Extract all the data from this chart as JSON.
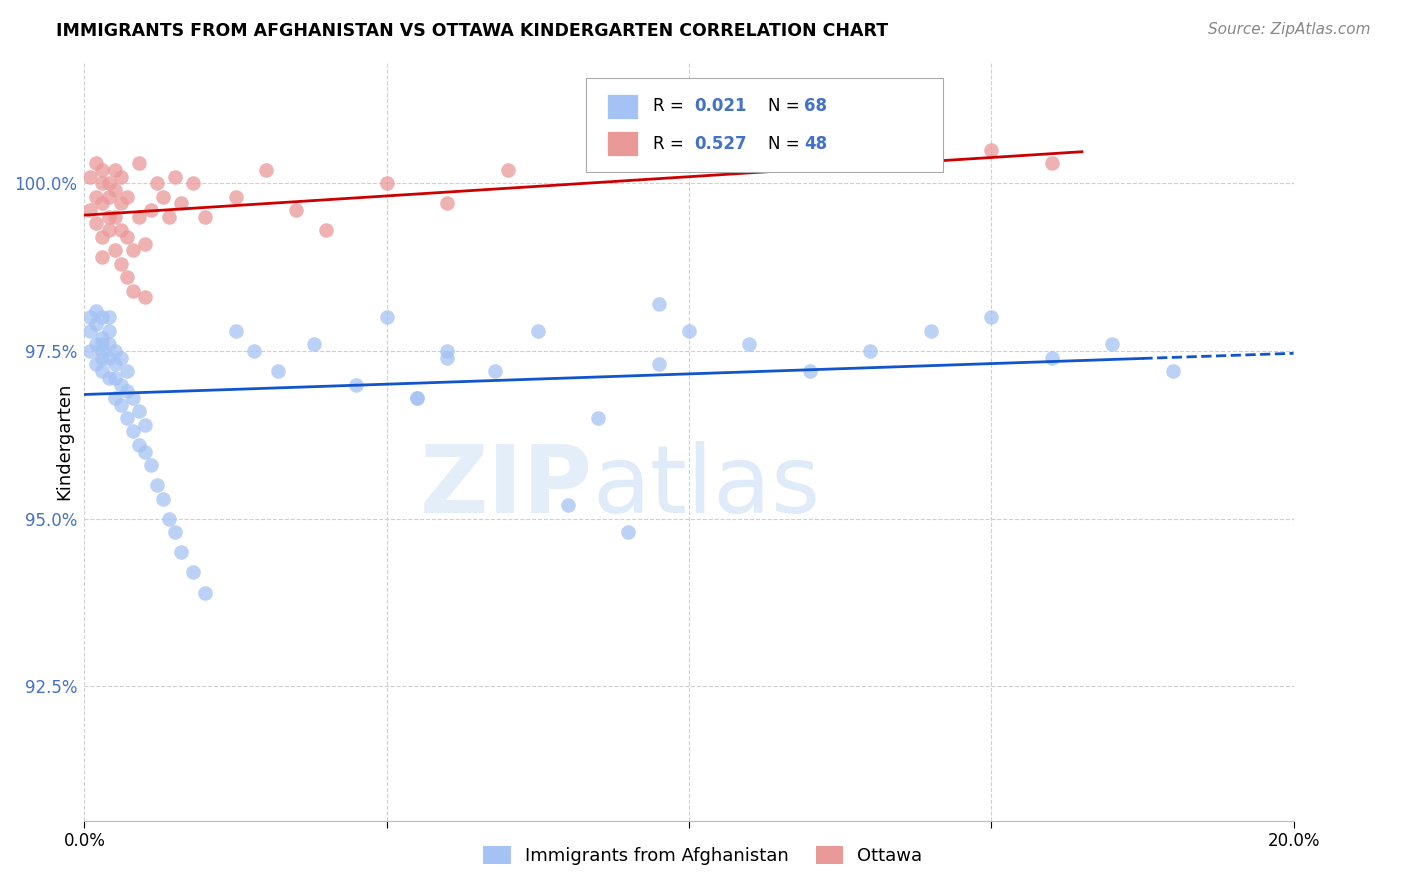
{
  "title": "IMMIGRANTS FROM AFGHANISTAN VS OTTAWA KINDERGARTEN CORRELATION CHART",
  "source": "Source: ZipAtlas.com",
  "ylabel": "Kindergarten",
  "yticks": [
    92.5,
    95.0,
    97.5,
    100.0
  ],
  "ytick_labels": [
    "92.5%",
    "95.0%",
    "97.5%",
    "100.0%"
  ],
  "xlim": [
    0.0,
    0.2
  ],
  "ylim": [
    90.5,
    101.8
  ],
  "blue_color": "#a4c2f4",
  "pink_color": "#ea9999",
  "blue_line_color": "#1155cc",
  "pink_line_color": "#cc0000",
  "blue_scatter_x": [
    0.001,
    0.001,
    0.001,
    0.002,
    0.002,
    0.002,
    0.002,
    0.003,
    0.003,
    0.003,
    0.003,
    0.003,
    0.003,
    0.004,
    0.004,
    0.004,
    0.004,
    0.004,
    0.005,
    0.005,
    0.005,
    0.005,
    0.006,
    0.006,
    0.006,
    0.007,
    0.007,
    0.007,
    0.008,
    0.008,
    0.009,
    0.009,
    0.01,
    0.01,
    0.011,
    0.012,
    0.013,
    0.014,
    0.015,
    0.016,
    0.018,
    0.02,
    0.025,
    0.028,
    0.032,
    0.038,
    0.045,
    0.05,
    0.055,
    0.06,
    0.068,
    0.075,
    0.085,
    0.095,
    0.11,
    0.12,
    0.13,
    0.14,
    0.15,
    0.16,
    0.17,
    0.18,
    0.095,
    0.1,
    0.055,
    0.06,
    0.08,
    0.09
  ],
  "blue_scatter_y": [
    97.5,
    97.8,
    98.0,
    97.3,
    97.6,
    97.9,
    98.1,
    97.2,
    97.5,
    97.7,
    97.4,
    97.6,
    98.0,
    97.1,
    97.4,
    97.6,
    97.8,
    98.0,
    96.8,
    97.1,
    97.3,
    97.5,
    96.7,
    97.0,
    97.4,
    96.5,
    96.9,
    97.2,
    96.3,
    96.8,
    96.1,
    96.6,
    96.0,
    96.4,
    95.8,
    95.5,
    95.3,
    95.0,
    94.8,
    94.5,
    94.2,
    93.9,
    97.8,
    97.5,
    97.2,
    97.6,
    97.0,
    98.0,
    96.8,
    97.5,
    97.2,
    97.8,
    96.5,
    97.3,
    97.6,
    97.2,
    97.5,
    97.8,
    98.0,
    97.4,
    97.6,
    97.2,
    98.2,
    97.8,
    96.8,
    97.4,
    95.2,
    94.8
  ],
  "pink_scatter_x": [
    0.001,
    0.001,
    0.002,
    0.002,
    0.002,
    0.003,
    0.003,
    0.003,
    0.003,
    0.003,
    0.004,
    0.004,
    0.004,
    0.004,
    0.005,
    0.005,
    0.005,
    0.005,
    0.006,
    0.006,
    0.006,
    0.006,
    0.007,
    0.007,
    0.007,
    0.008,
    0.008,
    0.009,
    0.009,
    0.01,
    0.01,
    0.011,
    0.012,
    0.013,
    0.014,
    0.015,
    0.016,
    0.018,
    0.02,
    0.025,
    0.03,
    0.035,
    0.04,
    0.05,
    0.06,
    0.07,
    0.15,
    0.16
  ],
  "pink_scatter_y": [
    99.6,
    100.1,
    99.8,
    100.3,
    99.4,
    99.2,
    99.7,
    100.0,
    100.2,
    98.9,
    99.5,
    100.0,
    99.3,
    99.8,
    99.0,
    99.5,
    99.9,
    100.2,
    98.8,
    99.3,
    99.7,
    100.1,
    98.6,
    99.2,
    99.8,
    98.4,
    99.0,
    99.5,
    100.3,
    98.3,
    99.1,
    99.6,
    100.0,
    99.8,
    99.5,
    100.1,
    99.7,
    100.0,
    99.5,
    99.8,
    100.2,
    99.6,
    99.3,
    100.0,
    99.7,
    100.2,
    100.5,
    100.3
  ],
  "watermark_zip": "ZIP",
  "watermark_atlas": "atlas",
  "grid_color": "#d0d0d0",
  "grid_style": "--",
  "legend_blue_r": "0.021",
  "legend_blue_n": "68",
  "legend_pink_r": "0.527",
  "legend_pink_n": "48",
  "legend_label_blue": "Immigrants from Afghanistan",
  "legend_label_pink": "Ottawa",
  "blue_line_x_solid_end": 0.175,
  "blue_line_x_dash_end": 0.2,
  "pink_line_x_end": 0.165
}
